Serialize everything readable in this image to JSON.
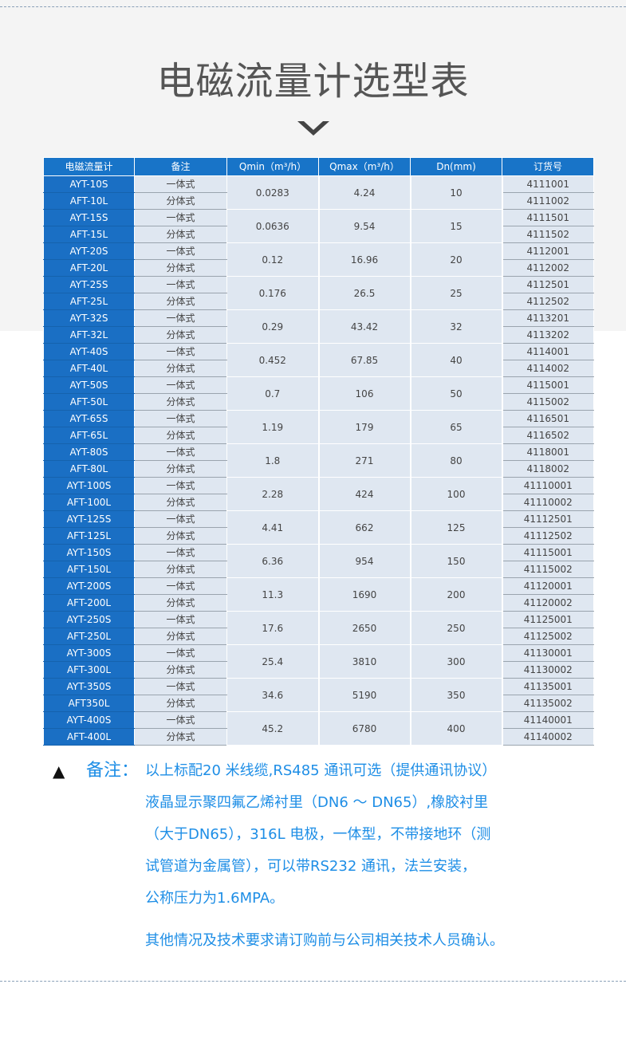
{
  "title": "电磁流量计选型表",
  "colors": {
    "header_bg": "#1874c8",
    "model_bg": "#1a6fc4",
    "cell_bg": "#dfe7f1",
    "note_text": "#1e8ee6"
  },
  "table": {
    "headers": [
      "电磁流量计",
      "备注",
      "Qmin（m³/h）",
      "Qmax（m³/h）",
      "Dn(mm)",
      "订货号"
    ],
    "groups": [
      {
        "qmin": "0.0283",
        "qmax": "4.24",
        "dn": "10",
        "rows": [
          {
            "model": "AYT-10S",
            "type": "一体式",
            "order": "4111001"
          },
          {
            "model": "AFT-10L",
            "type": "分体式",
            "order": "4111002"
          }
        ]
      },
      {
        "qmin": "0.0636",
        "qmax": "9.54",
        "dn": "15",
        "rows": [
          {
            "model": "AYT-15S",
            "type": "一体式",
            "order": "4111501"
          },
          {
            "model": "AFT-15L",
            "type": "分体式",
            "order": "4111502"
          }
        ]
      },
      {
        "qmin": "0.12",
        "qmax": "16.96",
        "dn": "20",
        "rows": [
          {
            "model": "AYT-20S",
            "type": "一体式",
            "order": "4112001"
          },
          {
            "model": "AFT-20L",
            "type": "分体式",
            "order": "4112002"
          }
        ]
      },
      {
        "qmin": "0.176",
        "qmax": "26.5",
        "dn": "25",
        "rows": [
          {
            "model": "AYT-25S",
            "type": "一体式",
            "order": "4112501"
          },
          {
            "model": "AFT-25L",
            "type": "分体式",
            "order": "4112502"
          }
        ]
      },
      {
        "qmin": "0.29",
        "qmax": "43.42",
        "dn": "32",
        "rows": [
          {
            "model": "AYT-32S",
            "type": "一体式",
            "order": "4113201"
          },
          {
            "model": "AFT-32L",
            "type": "分体式",
            "order": "4113202"
          }
        ]
      },
      {
        "qmin": "0.452",
        "qmax": "67.85",
        "dn": "40",
        "rows": [
          {
            "model": "AYT-40S",
            "type": "一体式",
            "order": "4114001"
          },
          {
            "model": "AFT-40L",
            "type": "分体式",
            "order": "4114002"
          }
        ]
      },
      {
        "qmin": "0.7",
        "qmax": "106",
        "dn": "50",
        "rows": [
          {
            "model": "AYT-50S",
            "type": "一体式",
            "order": "4115001"
          },
          {
            "model": "AFT-50L",
            "type": "分体式",
            "order": "4115002"
          }
        ]
      },
      {
        "qmin": "1.19",
        "qmax": "179",
        "dn": "65",
        "rows": [
          {
            "model": "AYT-65S",
            "type": "一体式",
            "order": "4116501"
          },
          {
            "model": "AFT-65L",
            "type": "分体式",
            "order": "4116502"
          }
        ]
      },
      {
        "qmin": "1.8",
        "qmax": "271",
        "dn": "80",
        "rows": [
          {
            "model": "AYT-80S",
            "type": "一体式",
            "order": "4118001"
          },
          {
            "model": "AFT-80L",
            "type": "分体式",
            "order": "4118002"
          }
        ]
      },
      {
        "qmin": "2.28",
        "qmax": "424",
        "dn": "100",
        "rows": [
          {
            "model": "AYT-100S",
            "type": "一体式",
            "order": "41110001"
          },
          {
            "model": "AFT-100L",
            "type": "分体式",
            "order": "41110002"
          }
        ]
      },
      {
        "qmin": "4.41",
        "qmax": "662",
        "dn": "125",
        "rows": [
          {
            "model": "AYT-125S",
            "type": "一体式",
            "order": "41112501"
          },
          {
            "model": "AFT-125L",
            "type": "分体式",
            "order": "41112502"
          }
        ]
      },
      {
        "qmin": "6.36",
        "qmax": "954",
        "dn": "150",
        "rows": [
          {
            "model": "AYT-150S",
            "type": "一体式",
            "order": "41115001"
          },
          {
            "model": "AFT-150L",
            "type": "分体式",
            "order": "41115002"
          }
        ]
      },
      {
        "qmin": "11.3",
        "qmax": "1690",
        "dn": "200",
        "rows": [
          {
            "model": "AYT-200S",
            "type": "一体式",
            "order": "41120001"
          },
          {
            "model": "AFT-200L",
            "type": "分体式",
            "order": "41120002"
          }
        ]
      },
      {
        "qmin": "17.6",
        "qmax": "2650",
        "dn": "250",
        "rows": [
          {
            "model": "AYT-250S",
            "type": "一体式",
            "order": "41125001"
          },
          {
            "model": "AFT-250L",
            "type": "分体式",
            "order": "41125002"
          }
        ]
      },
      {
        "qmin": "25.4",
        "qmax": "3810",
        "dn": "300",
        "rows": [
          {
            "model": "AYT-300S",
            "type": "一体式",
            "order": "41130001"
          },
          {
            "model": "AFT-300L",
            "type": "分体式",
            "order": "41130002"
          }
        ]
      },
      {
        "qmin": "34.6",
        "qmax": "5190",
        "dn": "350",
        "rows": [
          {
            "model": "AYT-350S",
            "type": "一体式",
            "order": "41135001"
          },
          {
            "model": "AFT350L",
            "type": "分体式",
            "order": "41135002"
          }
        ]
      },
      {
        "qmin": "45.2",
        "qmax": "6780",
        "dn": "400",
        "rows": [
          {
            "model": "AYT-400S",
            "type": "一体式",
            "order": "41140001"
          },
          {
            "model": "AFT-400L",
            "type": "分体式",
            "order": "41140002"
          }
        ]
      }
    ]
  },
  "notes": {
    "marker": "▲",
    "label": "备注：",
    "lines": [
      "以上标配20 米线缆,RS485 通讯可选（提供通讯协议）",
      "液晶显示聚四氟乙烯衬里（DN6 ～ DN65）,橡胶衬里",
      "（大于DN65），316L 电极，一体型，不带接地环（测",
      "试管道为金属管），可以带RS232 通讯，法兰安装，",
      "公称压力为1.6MPA。"
    ],
    "footer": "其他情况及技术要求请订购前与公司相关技术人员确认。"
  }
}
